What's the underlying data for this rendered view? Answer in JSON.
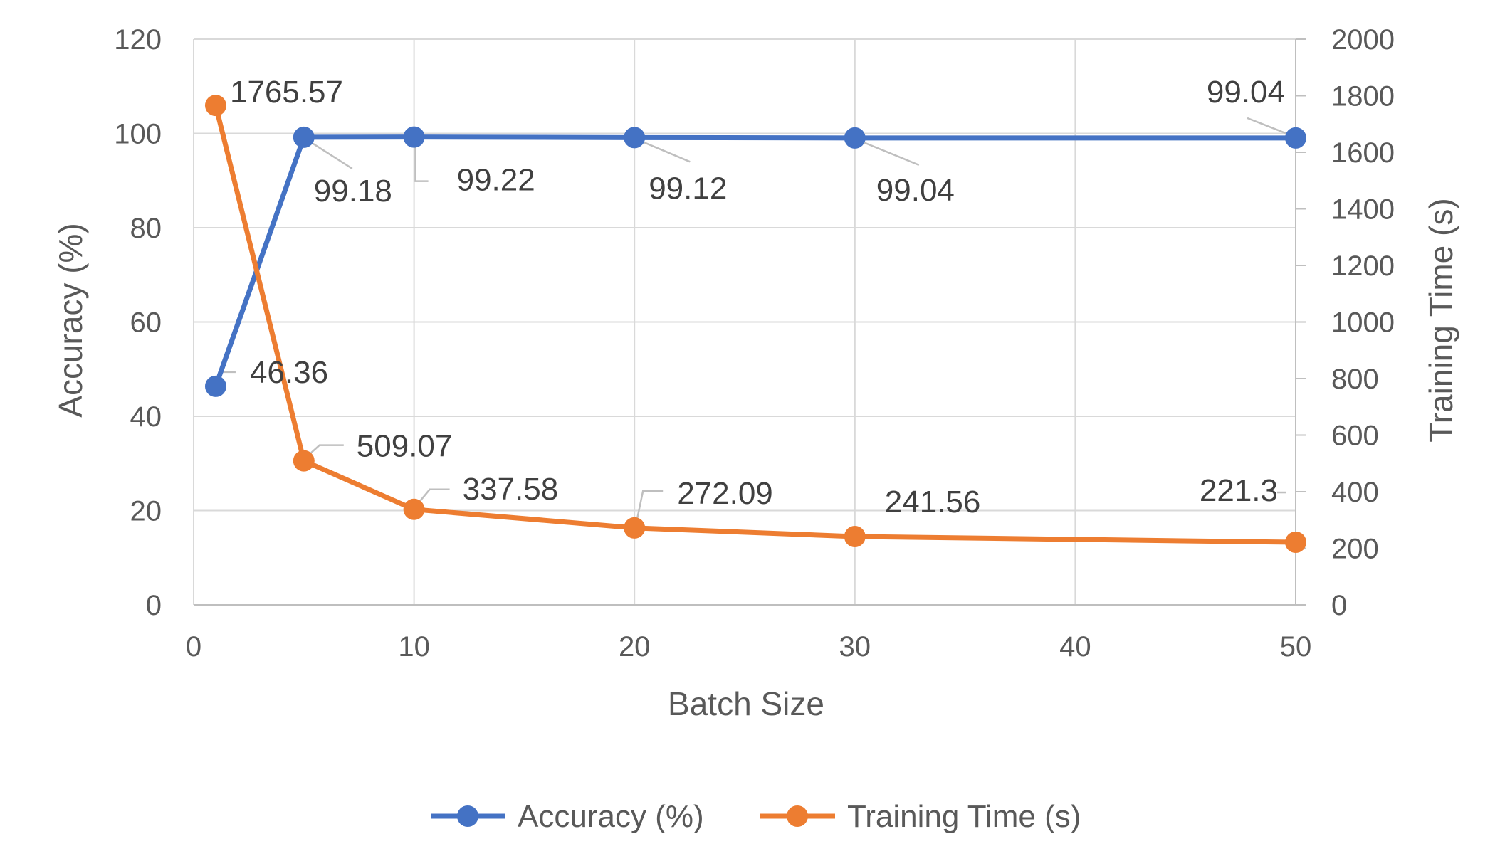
{
  "chart_data": {
    "type": "line",
    "x": [
      1,
      5,
      10,
      20,
      30,
      50
    ],
    "xlabel": "Batch Size",
    "xlim": [
      0,
      50
    ],
    "x_ticks": [
      "0",
      "10",
      "20",
      "30",
      "40",
      "50"
    ],
    "grid": true,
    "legend_position": "bottom",
    "series": [
      {
        "name": "Accuracy (%)",
        "axis": "left",
        "color": "#4472C4",
        "values": [
          46.36,
          99.18,
          99.22,
          99.12,
          99.04,
          99.04
        ],
        "labels": [
          "46.36",
          "99.18",
          "99.22",
          "99.12",
          "99.04",
          "99.04"
        ]
      },
      {
        "name": "Training Time (s)",
        "axis": "right",
        "color": "#ED7D31",
        "values": [
          1765.57,
          509.07,
          337.58,
          272.09,
          241.56,
          221.3
        ],
        "labels": [
          "1765.57",
          "509.07",
          "337.58",
          "272.09",
          "241.56",
          "221.3"
        ]
      }
    ],
    "y_left": {
      "label": "Accuracy (%)",
      "range": [
        0,
        120
      ],
      "ticks": [
        "0",
        "20",
        "40",
        "60",
        "80",
        "100",
        "120"
      ]
    },
    "y_right": {
      "label": "Training Time (s)",
      "range": [
        0,
        2000
      ],
      "ticks": [
        "0",
        "200",
        "400",
        "600",
        "800",
        "1000",
        "1200",
        "1400",
        "1600",
        "1800",
        "2000"
      ]
    }
  }
}
